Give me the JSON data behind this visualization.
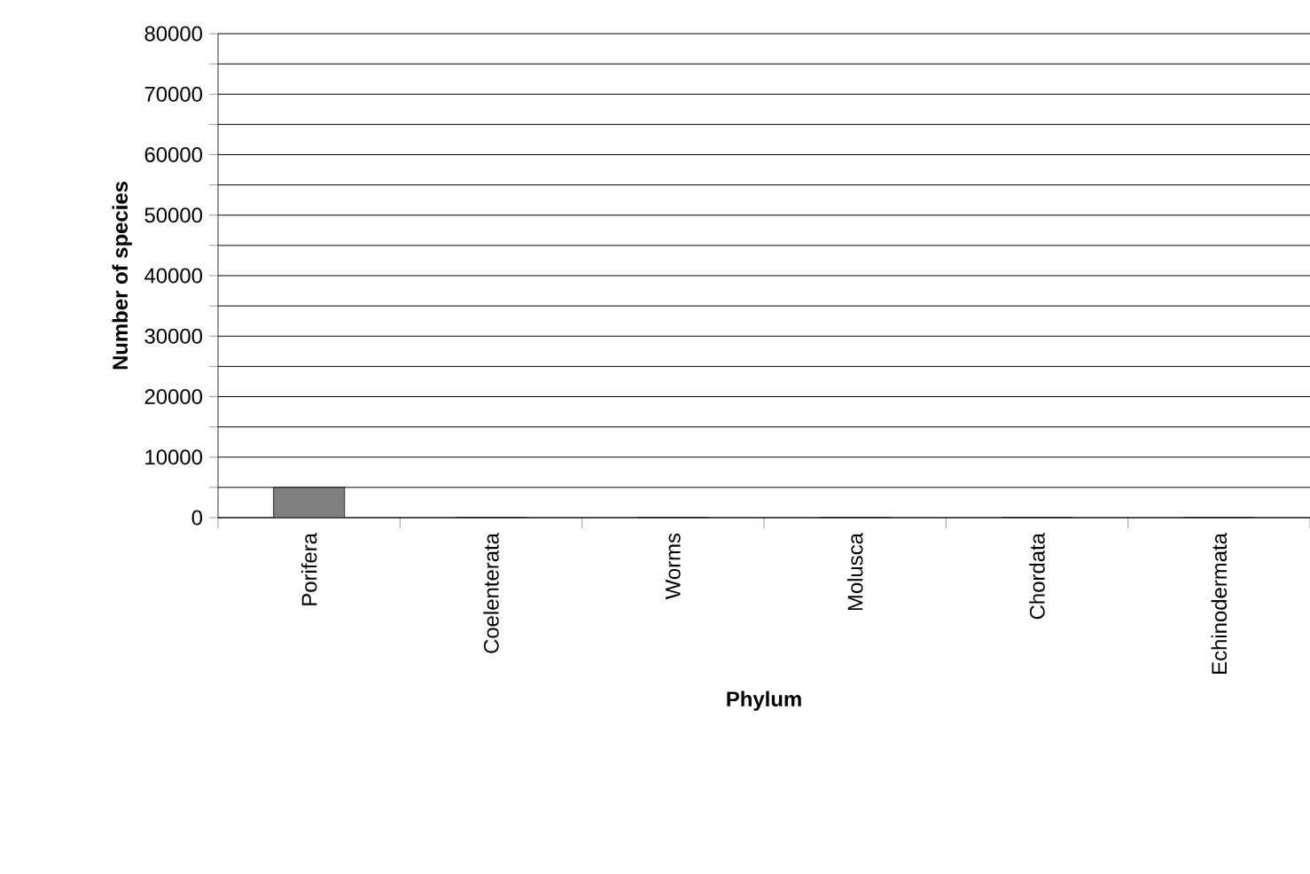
{
  "chart_data": {
    "type": "bar",
    "xlabel": "Phylum",
    "ylabel": "Number of species",
    "categories": [
      "Porifera",
      "Coelenterata",
      "Worms",
      "Molusca",
      "Chordata",
      "Echinodermata"
    ],
    "values": [
      5000,
      0,
      0,
      0,
      0,
      0
    ],
    "color": "#808080",
    "ylim": [
      0,
      80000
    ],
    "yticks": [
      0,
      {
        "value": 5000,
        "label": null
      },
      10000,
      {
        "value": 15000,
        "label": null
      },
      20000,
      {
        "value": 25000,
        "label": null
      },
      30000,
      {
        "value": 35000,
        "label": null
      },
      40000,
      {
        "value": 45000,
        "label": null
      },
      50000,
      {
        "value": 55000,
        "label": null
      },
      60000,
      {
        "value": 65000,
        "label": null
      },
      70000,
      {
        "value": 75000,
        "label": null
      },
      80000
    ],
    "grid": "y"
  }
}
